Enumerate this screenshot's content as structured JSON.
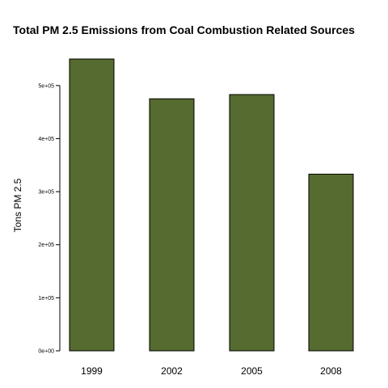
{
  "chart_data": {
    "type": "bar",
    "title": "Total PM 2.5 Emissions from Coal Combustion Related Sources",
    "xlabel": "",
    "ylabel": "Tons PM 2.5",
    "categories": [
      "1999",
      "2002",
      "2005",
      "2008"
    ],
    "values": [
      550000,
      475000,
      483000,
      333000
    ],
    "ylim": [
      0,
      550000
    ],
    "yticks": [
      0,
      100000,
      200000,
      300000,
      400000,
      500000
    ],
    "ytick_labels": [
      "0e+00",
      "1e+05",
      "2e+05",
      "3e+05",
      "4e+05",
      "5e+05"
    ],
    "bar_color": "#556B2F",
    "bar_border_color": "#000000",
    "grid": false,
    "legend": "none"
  }
}
